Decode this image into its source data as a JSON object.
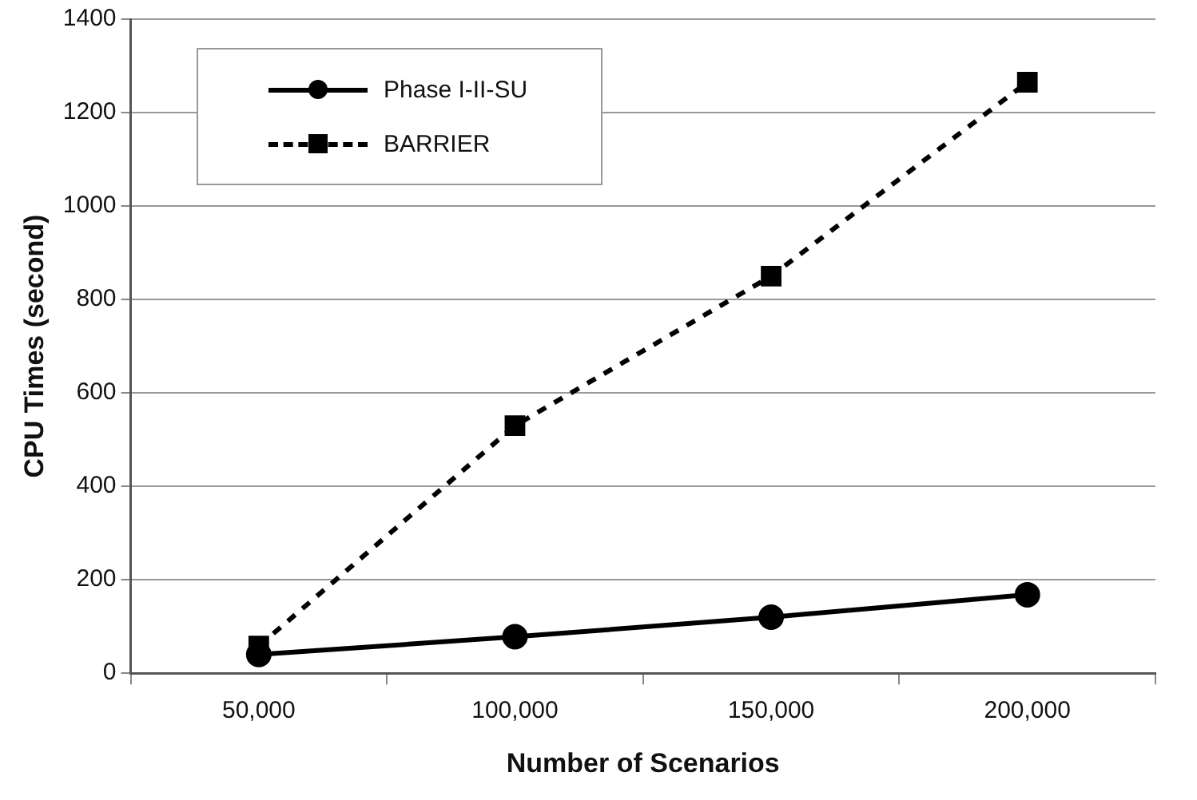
{
  "chart_data": {
    "type": "line",
    "xlabel": "Number of Scenarios",
    "ylabel": "CPU Times (second)",
    "categories": [
      "50,000",
      "100,000",
      "150,000",
      "200,000"
    ],
    "series": [
      {
        "name": "Phase I-II-SU",
        "color": "#000000",
        "values": [
          40,
          78,
          120,
          168
        ],
        "marker": "circle",
        "line_style": "solid"
      },
      {
        "name": "BARRIER",
        "color": "#000000",
        "values": [
          58,
          530,
          850,
          1265
        ],
        "marker": "square",
        "line_style": "dashed"
      }
    ],
    "ylim": [
      0,
      1400
    ],
    "yticks": [
      0,
      200,
      400,
      600,
      800,
      1000,
      1200,
      1400
    ],
    "grid": "y",
    "legend": "top left"
  }
}
